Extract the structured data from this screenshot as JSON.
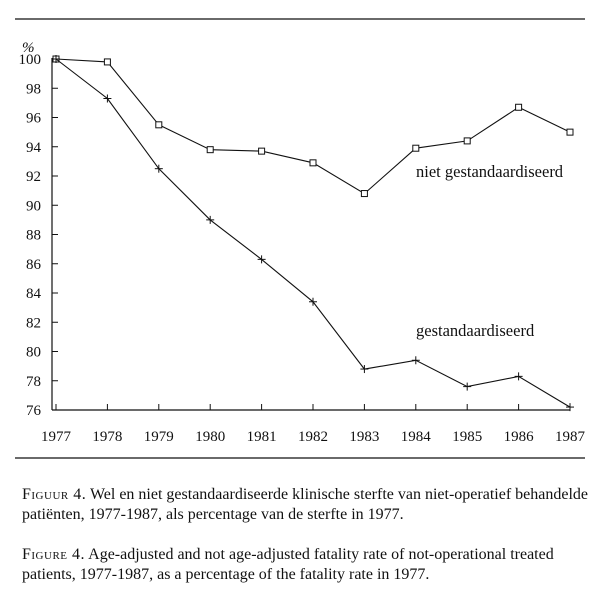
{
  "chart_data": {
    "type": "line",
    "ylabel": "%",
    "xlim": [
      1977,
      1987
    ],
    "ylim": [
      76,
      100
    ],
    "x_ticks": [
      1977,
      1978,
      1979,
      1980,
      1981,
      1982,
      1983,
      1984,
      1985,
      1986,
      1987
    ],
    "y_ticks": [
      76,
      78,
      80,
      82,
      84,
      86,
      88,
      90,
      92,
      94,
      96,
      98,
      100
    ],
    "grid": false,
    "series": [
      {
        "name": "niet gestandaardiseerd",
        "marker": "square",
        "x": [
          1977,
          1978,
          1979,
          1980,
          1981,
          1982,
          1983,
          1984,
          1985,
          1986,
          1987
        ],
        "y": [
          100,
          99.8,
          95.5,
          93.8,
          93.7,
          92.9,
          90.8,
          93.9,
          94.4,
          96.7,
          95.0
        ]
      },
      {
        "name": "gestandaardiseerd",
        "marker": "plus",
        "x": [
          1977,
          1978,
          1979,
          1980,
          1981,
          1982,
          1983,
          1984,
          1985,
          1986,
          1987
        ],
        "y": [
          100,
          97.3,
          92.5,
          89.0,
          86.3,
          83.4,
          78.8,
          79.4,
          77.6,
          78.3,
          76.2
        ]
      }
    ]
  },
  "captions": {
    "nl_lead": "Figuur 4.",
    "nl_text": "Wel en niet gestandaardiseerde klinische sterfte van niet-operatief behandelde patiënten, 1977-1987, als percentage van de sterfte in 1977.",
    "en_lead": "Figure 4.",
    "en_text": "Age-adjusted and not age-adjusted fatality rate of not-operational treated patients, 1977-1987, as a percentage of the fatality rate in 1977."
  }
}
